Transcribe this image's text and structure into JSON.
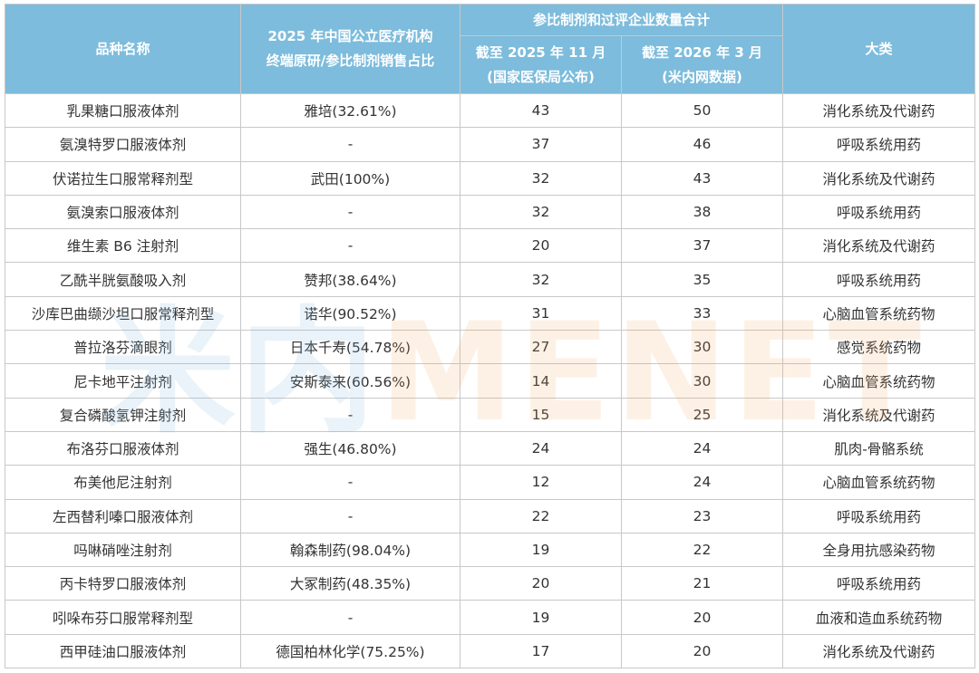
{
  "header": {
    "name": "品种名称",
    "share_line1": "2025 年中国公立医疗机构",
    "share_line2": "终端原研/参比制剂销售占比",
    "group": "参比制剂和过评企业数量合计",
    "col2025_line1": "截至 2025 年 11 月",
    "col2025_line2": "(国家医保局公布)",
    "col2026_line1": "截至 2026 年 3 月",
    "col2026_line2": "(米内网数据)",
    "category": "大类"
  },
  "watermark": {
    "cn": "米内",
    "en": "MENET"
  },
  "rows": [
    {
      "name": "乳果糖口服液体剂",
      "share": "雅培(32.61%)",
      "n2025": "43",
      "n2026": "50",
      "category": "消化系统及代谢药"
    },
    {
      "name": "氨溴特罗口服液体剂",
      "share": "-",
      "n2025": "37",
      "n2026": "46",
      "category": "呼吸系统用药"
    },
    {
      "name": "伏诺拉生口服常释剂型",
      "share": "武田(100%)",
      "n2025": "32",
      "n2026": "43",
      "category": "消化系统及代谢药"
    },
    {
      "name": "氨溴索口服液体剂",
      "share": "-",
      "n2025": "32",
      "n2026": "38",
      "category": "呼吸系统用药"
    },
    {
      "name": "维生素 B6 注射剂",
      "share": "-",
      "n2025": "20",
      "n2026": "37",
      "category": "消化系统及代谢药"
    },
    {
      "name": "乙酰半胱氨酸吸入剂",
      "share": "赞邦(38.64%)",
      "n2025": "32",
      "n2026": "35",
      "category": "呼吸系统用药"
    },
    {
      "name": "沙库巴曲缬沙坦口服常释剂型",
      "share": "诺华(90.52%)",
      "n2025": "31",
      "n2026": "33",
      "category": "心脑血管系统药物"
    },
    {
      "name": "普拉洛芬滴眼剂",
      "share": "日本千寿(54.78%)",
      "n2025": "27",
      "n2026": "30",
      "category": "感觉系统药物"
    },
    {
      "name": "尼卡地平注射剂",
      "share": "安斯泰来(60.56%)",
      "n2025": "14",
      "n2026": "30",
      "category": "心脑血管系统药物"
    },
    {
      "name": "复合磷酸氢钾注射剂",
      "share": "-",
      "n2025": "15",
      "n2026": "25",
      "category": "消化系统及代谢药"
    },
    {
      "name": "布洛芬口服液体剂",
      "share": "强生(46.80%)",
      "n2025": "24",
      "n2026": "24",
      "category": "肌肉-骨骼系统"
    },
    {
      "name": "布美他尼注射剂",
      "share": "-",
      "n2025": "12",
      "n2026": "24",
      "category": "心脑血管系统药物"
    },
    {
      "name": "左西替利嗪口服液体剂",
      "share": "-",
      "n2025": "22",
      "n2026": "23",
      "category": "呼吸系统用药"
    },
    {
      "name": "吗啉硝唑注射剂",
      "share": "翰森制药(98.04%)",
      "n2025": "19",
      "n2026": "22",
      "category": "全身用抗感染药物"
    },
    {
      "name": "丙卡特罗口服液体剂",
      "share": "大冢制药(48.35%)",
      "n2025": "20",
      "n2026": "21",
      "category": "呼吸系统用药"
    },
    {
      "name": "吲哚布芬口服常释剂型",
      "share": "-",
      "n2025": "19",
      "n2026": "20",
      "category": "血液和造血系统药物"
    },
    {
      "name": "西甲硅油口服液体剂",
      "share": "德国柏林化学(75.25%)",
      "n2025": "17",
      "n2026": "20",
      "category": "消化系统及代谢药"
    }
  ]
}
